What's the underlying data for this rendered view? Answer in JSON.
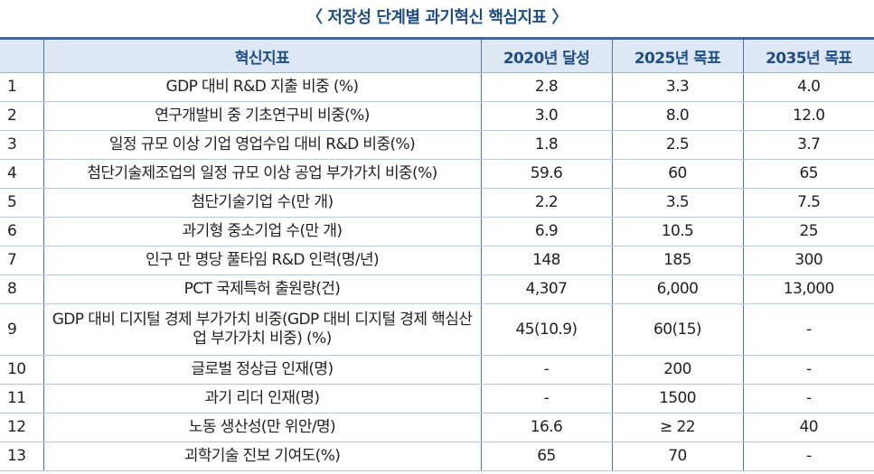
{
  "title": "〈 저장성 단계별 과기혁신 핵심지표 〉",
  "headers": [
    "",
    "혁신지표",
    "2020년 달성",
    "2025년 목표",
    "2035년 목표"
  ],
  "rows": [
    [
      "1",
      "GDP 대비 R&D 지출 비중 (%)",
      "2.8",
      "3.3",
      "4.0"
    ],
    [
      "2",
      "연구개발비 중 기초연구비 비중(%)",
      "3.0",
      "8.0",
      "12.0"
    ],
    [
      "3",
      "일정 규모 이상 기업 영업수입 대비 R&D 비중(%)",
      "1.8",
      "2.5",
      "3.7"
    ],
    [
      "4",
      "첨단기술제조업의 일정 규모 이상 공업 부가가치 비중(%)",
      "59.6",
      "60",
      "65"
    ],
    [
      "5",
      "첨단기술기업 수(만 개)",
      "2.2",
      "3.5",
      "7.5"
    ],
    [
      "6",
      "과기형 중소기업 수(만 개)",
      "6.9",
      "10.5",
      "25"
    ],
    [
      "7",
      "인구 만 명당 풀타임 R&D 인력(명/년)",
      "148",
      "185",
      "300"
    ],
    [
      "8",
      "PCT 국제특허 출원량(건)",
      "4,307",
      "6,000",
      "13,000"
    ],
    [
      "9",
      "GDP 대비 디지털 경제 부가가치 비중(GDP 대비 디지털 경제 핵심산업 부가가치 비중) (%)",
      "45(10.9)",
      "60(15)",
      "-"
    ],
    [
      "10",
      "글로벌 정상급 인재(명)",
      "-",
      "200",
      "-"
    ],
    [
      "11",
      "과기 리더 인재(명)",
      "-",
      "1500",
      "-"
    ],
    [
      "12",
      "노동 생산성(만 위안/명)",
      "16.6",
      "≥ 22",
      "40"
    ],
    [
      "13",
      "괴학기술 진보 기여도(%)",
      "65",
      "70",
      "-"
    ]
  ]
}
